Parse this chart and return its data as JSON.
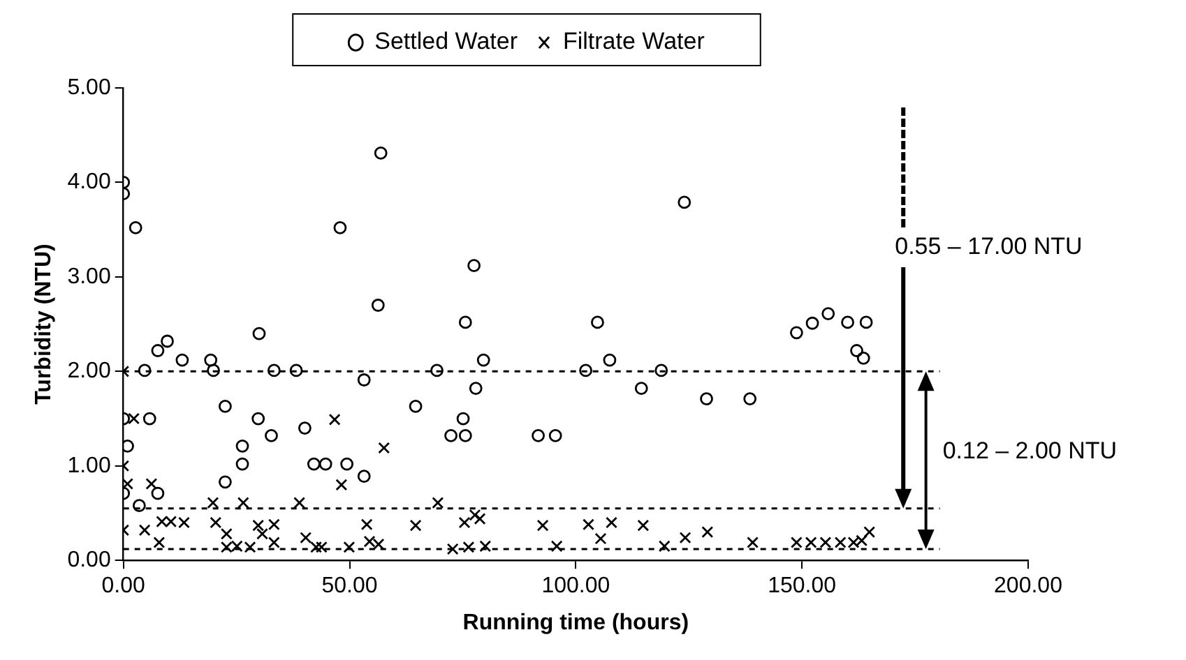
{
  "chart_data": {
    "type": "scatter",
    "xlabel": "Running time (hours)",
    "ylabel": "Turbidity (NTU)",
    "xlim": [
      0,
      200
    ],
    "xticks": [
      {
        "value": 0,
        "label": "0.00"
      },
      {
        "value": 50,
        "label": "50.00"
      },
      {
        "value": 100,
        "label": "100.00"
      },
      {
        "value": 150,
        "label": "150.00"
      },
      {
        "value": 200,
        "label": "200.00"
      }
    ],
    "ylim": [
      0,
      5
    ],
    "yticks": [
      {
        "value": 0,
        "label": "0.00"
      },
      {
        "value": 1,
        "label": "1.00"
      },
      {
        "value": 2,
        "label": "2.00"
      },
      {
        "value": 3,
        "label": "3.00"
      },
      {
        "value": 4,
        "label": "4.00"
      },
      {
        "value": 5,
        "label": "5.00"
      }
    ],
    "grid": false,
    "legend": "top",
    "series": [
      {
        "name": "Settled Water",
        "color": "#000000",
        "marker": "circle",
        "x": [
          0,
          0,
          2.7,
          56.9,
          47.9,
          56.3,
          30.0,
          9.7,
          7.6,
          13.0,
          19.3,
          4.7,
          19.9,
          33.3,
          38.2,
          53.2,
          22.5,
          64.6,
          0,
          5.8,
          29.8,
          32.7,
          40.1,
          0.9,
          26.3,
          26.3,
          42.1,
          44.7,
          49.4,
          53.2,
          22.5,
          0,
          7.6,
          3.5,
          69.3,
          77.5,
          75.6,
          79.6,
          77.9,
          75.1,
          72.4,
          75.6,
          91.7,
          95.5,
          102.2,
          104.8,
          107.5,
          114.5,
          118.9,
          124.0,
          128.9,
          138.5,
          148.8,
          152.3,
          155.8,
          160.1,
          164.2,
          162.1,
          163.6
        ],
        "values": [
          4.0,
          3.88,
          3.52,
          4.31,
          3.52,
          2.7,
          2.4,
          2.32,
          2.22,
          2.12,
          2.12,
          2.01,
          2.01,
          2.01,
          2.01,
          1.91,
          1.63,
          1.63,
          1.5,
          1.5,
          1.5,
          1.32,
          1.4,
          1.21,
          1.21,
          1.02,
          1.02,
          1.02,
          1.02,
          0.89,
          0.83,
          0.71,
          0.71,
          0.58,
          2.01,
          3.12,
          2.52,
          2.12,
          1.82,
          1.5,
          1.32,
          1.32,
          1.32,
          1.32,
          2.01,
          2.52,
          2.12,
          1.82,
          2.01,
          3.79,
          1.71,
          1.71,
          2.41,
          2.51,
          2.61,
          2.52,
          2.52,
          2.22,
          2.14
        ]
      },
      {
        "name": "Filtrate Water",
        "color": "#000000",
        "marker": "cross",
        "x": [
          0,
          2.3,
          46.7,
          57.6,
          0,
          0.9,
          6.2,
          48.2,
          19.8,
          26.5,
          38.9,
          0,
          4.7,
          8.5,
          10.5,
          13.4,
          7.9,
          20.4,
          22.8,
          29.8,
          30.7,
          33.3,
          25.1,
          22.8,
          28.0,
          33.3,
          40.3,
          42.6,
          43.8,
          49.9,
          53.8,
          54.4,
          56.4,
          64.6,
          69.5,
          72.8,
          75.4,
          76.3,
          77.7,
          78.8,
          80.0,
          92.7,
          95.8,
          102.8,
          105.5,
          107.9,
          114.9,
          119.6,
          124.2,
          129.1,
          139.1,
          148.8,
          152.0,
          155.2,
          158.5,
          161.4,
          163.2,
          164.9
        ],
        "values": [
          2.0,
          1.5,
          1.49,
          1.19,
          1.0,
          0.81,
          0.81,
          0.8,
          0.61,
          0.61,
          0.61,
          0.32,
          0.32,
          0.41,
          0.41,
          0.4,
          0.19,
          0.4,
          0.28,
          0.37,
          0.28,
          0.38,
          0.15,
          0.14,
          0.14,
          0.19,
          0.24,
          0.14,
          0.14,
          0.14,
          0.38,
          0.2,
          0.17,
          0.37,
          0.61,
          0.12,
          0.4,
          0.14,
          0.48,
          0.44,
          0.15,
          0.37,
          0.15,
          0.38,
          0.23,
          0.4,
          0.37,
          0.15,
          0.24,
          0.3,
          0.19,
          0.19,
          0.19,
          0.19,
          0.19,
          0.19,
          0.21,
          0.3
        ]
      }
    ],
    "ref_lines": [
      {
        "axis": "y",
        "value": 2.0,
        "line_style": "dashed"
      },
      {
        "axis": "y",
        "value": 0.55,
        "line_style": "dashed"
      },
      {
        "axis": "y",
        "value": 0.12,
        "line_style": "dashed"
      }
    ],
    "annotations": [
      "0.55 – 17.00 NTU",
      "0.12 – 2.00 NTU"
    ]
  }
}
